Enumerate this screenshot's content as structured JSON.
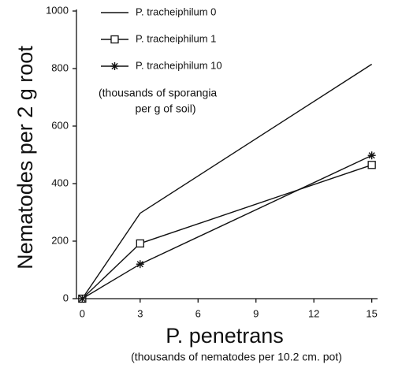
{
  "chart_data": {
    "type": "line",
    "x": [
      0,
      3,
      15
    ],
    "series": [
      {
        "name": "P. tracheiphilum 0",
        "color": "#111111",
        "marker": "none",
        "values": [
          0,
          297,
          815
        ]
      },
      {
        "name": "P. tracheiphilum 1",
        "color": "#111111",
        "marker": "square",
        "values": [
          0,
          192,
          465
        ]
      },
      {
        "name": "P. tracheiphilum 10",
        "color": "#111111",
        "marker": "asterisk",
        "values": [
          0,
          120,
          498
        ]
      }
    ],
    "legend_note": [
      "(thousands of sporangia",
      "per g of soil)"
    ],
    "y_label": "Nematodes per 2 g root",
    "x_label": "P. penetrans",
    "x_sublabel": "(thousands of nematodes per 10.2 cm. pot)",
    "xlim": [
      -0.3,
      15.3
    ],
    "xticks": [
      0,
      3,
      6,
      9,
      12,
      15
    ],
    "ylim": [
      0,
      1000
    ],
    "yticks": [
      0,
      200,
      400,
      600,
      800,
      1000
    ],
    "legend": "upper left",
    "grid": false
  }
}
